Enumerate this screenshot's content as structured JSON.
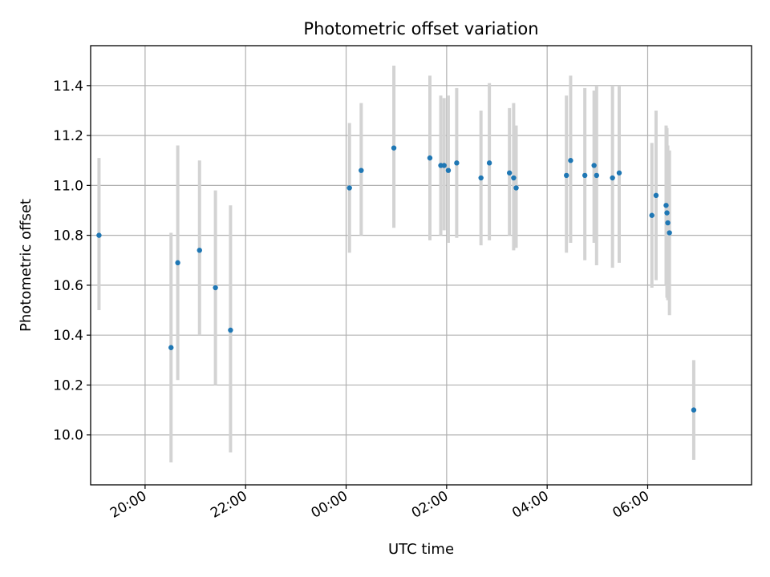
{
  "chart_data": {
    "type": "scatter",
    "title": "Photometric offset variation",
    "xlabel": "UTC time",
    "ylabel": "Photometric offset",
    "x_tick_labels": [
      "20:00",
      "22:00",
      "00:00",
      "02:00",
      "04:00",
      "06:00"
    ],
    "x_tick_hours": [
      20,
      22,
      24,
      26,
      28,
      30
    ],
    "y_ticks": [
      10.0,
      10.2,
      10.4,
      10.6,
      10.8,
      11.0,
      11.2,
      11.4
    ],
    "y_tick_labels": [
      "10.0",
      "10.2",
      "10.4",
      "10.6",
      "10.8",
      "11.0",
      "11.2",
      "11.4"
    ],
    "xlim": [
      "18:55",
      "08:04"
    ],
    "ylim": [
      9.8,
      11.56
    ],
    "grid": true,
    "colors": {
      "point": "#1f77b4",
      "errorbar": "#d3d3d3",
      "grid": "#b0b0b0"
    },
    "points": [
      {
        "t": "19:05",
        "y": 10.8,
        "lo": 10.5,
        "hi": 11.11
      },
      {
        "t": "20:31",
        "y": 10.35,
        "lo": 9.89,
        "hi": 10.81
      },
      {
        "t": "20:39",
        "y": 10.69,
        "lo": 10.22,
        "hi": 11.16
      },
      {
        "t": "21:05",
        "y": 10.74,
        "lo": 10.4,
        "hi": 11.1
      },
      {
        "t": "21:24",
        "y": 10.59,
        "lo": 10.2,
        "hi": 10.98
      },
      {
        "t": "21:42",
        "y": 10.42,
        "lo": 9.93,
        "hi": 10.92
      },
      {
        "t": "00:04",
        "y": 10.99,
        "lo": 10.73,
        "hi": 11.25
      },
      {
        "t": "00:18",
        "y": 11.06,
        "lo": 10.8,
        "hi": 11.33
      },
      {
        "t": "00:57",
        "y": 11.15,
        "lo": 10.83,
        "hi": 11.48
      },
      {
        "t": "01:40",
        "y": 11.11,
        "lo": 10.78,
        "hi": 11.44
      },
      {
        "t": "01:53",
        "y": 11.08,
        "lo": 10.8,
        "hi": 11.36
      },
      {
        "t": "01:57",
        "y": 11.08,
        "lo": 10.82,
        "hi": 11.35
      },
      {
        "t": "02:02",
        "y": 11.06,
        "lo": 10.77,
        "hi": 11.36
      },
      {
        "t": "02:12",
        "y": 11.09,
        "lo": 10.79,
        "hi": 11.39
      },
      {
        "t": "02:41",
        "y": 11.03,
        "lo": 10.76,
        "hi": 11.3
      },
      {
        "t": "02:51",
        "y": 11.09,
        "lo": 10.78,
        "hi": 11.41
      },
      {
        "t": "03:15",
        "y": 11.05,
        "lo": 10.8,
        "hi": 11.31
      },
      {
        "t": "03:20",
        "y": 11.03,
        "lo": 10.74,
        "hi": 11.33
      },
      {
        "t": "03:23",
        "y": 10.99,
        "lo": 10.75,
        "hi": 11.24
      },
      {
        "t": "04:23",
        "y": 11.04,
        "lo": 10.73,
        "hi": 11.36
      },
      {
        "t": "04:28",
        "y": 11.1,
        "lo": 10.77,
        "hi": 11.44
      },
      {
        "t": "04:45",
        "y": 11.04,
        "lo": 10.7,
        "hi": 11.39
      },
      {
        "t": "04:56",
        "y": 11.08,
        "lo": 10.77,
        "hi": 11.38
      },
      {
        "t": "04:59",
        "y": 11.04,
        "lo": 10.68,
        "hi": 11.4
      },
      {
        "t": "05:18",
        "y": 11.03,
        "lo": 10.67,
        "hi": 11.4
      },
      {
        "t": "05:26",
        "y": 11.05,
        "lo": 10.69,
        "hi": 11.4
      },
      {
        "t": "06:05",
        "y": 10.88,
        "lo": 10.59,
        "hi": 11.17
      },
      {
        "t": "06:10",
        "y": 10.96,
        "lo": 10.62,
        "hi": 11.3
      },
      {
        "t": "06:22",
        "y": 10.92,
        "lo": 10.6,
        "hi": 11.24
      },
      {
        "t": "06:23",
        "y": 10.89,
        "lo": 10.55,
        "hi": 11.23
      },
      {
        "t": "06:24",
        "y": 10.85,
        "lo": 10.54,
        "hi": 11.16
      },
      {
        "t": "06:26",
        "y": 10.81,
        "lo": 10.48,
        "hi": 11.14
      },
      {
        "t": "06:55",
        "y": 10.1,
        "lo": 9.9,
        "hi": 10.3
      }
    ]
  }
}
